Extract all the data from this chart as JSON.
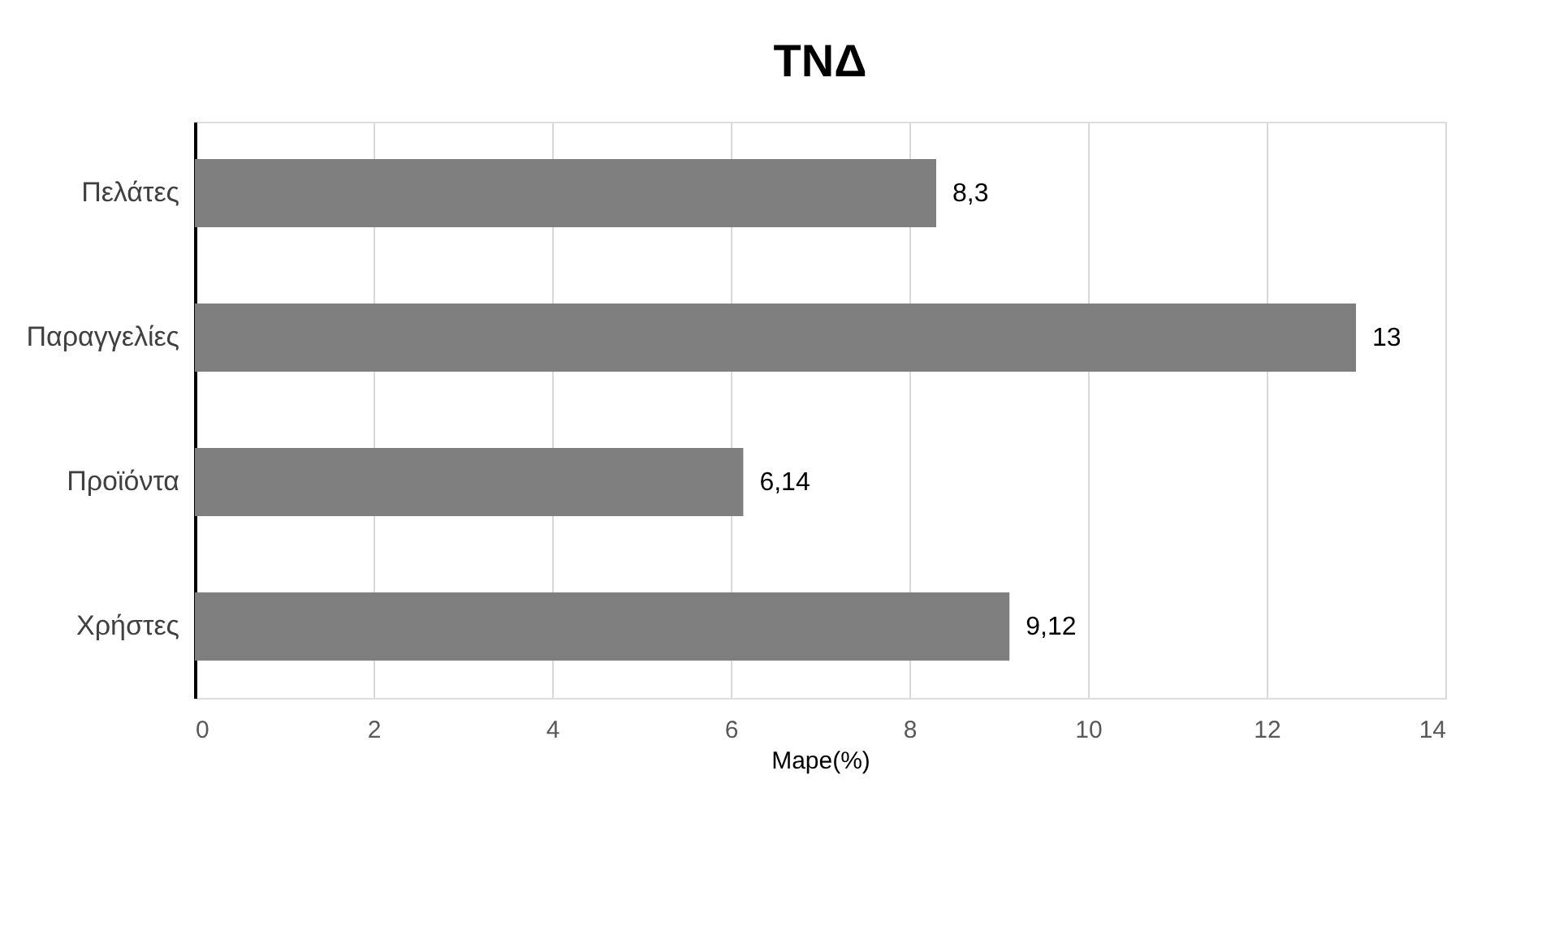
{
  "chart_data": {
    "type": "bar",
    "orientation": "horizontal",
    "title": "ΤΝΔ",
    "xlabel": "Mape(%)",
    "categories": [
      "Πελάτες",
      "Παραγγελίες",
      "Προϊόντα",
      "Χρήστες"
    ],
    "values": [
      8.3,
      13,
      6.14,
      9.12
    ],
    "value_labels": [
      "8,3",
      "13",
      "6,14",
      "9,12"
    ],
    "color": "#7f7f7f",
    "xlim": [
      0,
      14
    ],
    "xticks": [
      0,
      2,
      4,
      6,
      8,
      10,
      12,
      14
    ],
    "grid": "x"
  }
}
